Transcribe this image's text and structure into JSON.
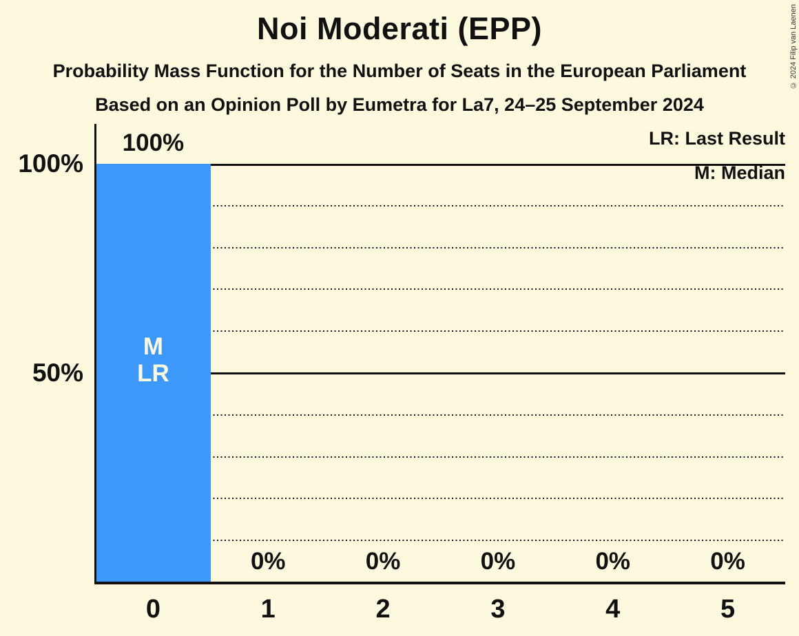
{
  "header": {
    "title": "Noi Moderati (EPP)",
    "subtitle": "Probability Mass Function for the Number of Seats in the European Parliament",
    "poll_info": "Based on an Opinion Poll by Eumetra for La7, 24–25 September 2024"
  },
  "copyright": "© 2024 Filip van Laenen",
  "legend": {
    "last_result": "LR: Last Result",
    "median": "M: Median"
  },
  "colors": {
    "background": "#FDF9DE",
    "bar": "#3C99FA",
    "text": "#111111",
    "bar_label_text": "#FDF9DE",
    "copyright_text": "#333333"
  },
  "chart_data": {
    "type": "bar",
    "title": "Noi Moderati (EPP)",
    "categories": [
      "0",
      "1",
      "2",
      "3",
      "4",
      "5"
    ],
    "values": [
      100,
      0,
      0,
      0,
      0,
      0
    ],
    "value_labels": [
      "100%",
      "0%",
      "0%",
      "0%",
      "0%",
      "0%"
    ],
    "ylim": [
      0,
      100
    ],
    "y_axis_labels": [
      {
        "value": 100,
        "label": "100%"
      },
      {
        "value": 50,
        "label": "50%"
      }
    ],
    "solid_gridlines": [
      50,
      100
    ],
    "dotted_gridlines": [
      10,
      20,
      30,
      40,
      60,
      70,
      80,
      90
    ],
    "grid": "horizontal",
    "legend_position": "top-right",
    "median_category": "0",
    "last_result_category": "0",
    "bar_annotations": {
      "median": "M",
      "last_result": "LR"
    }
  }
}
